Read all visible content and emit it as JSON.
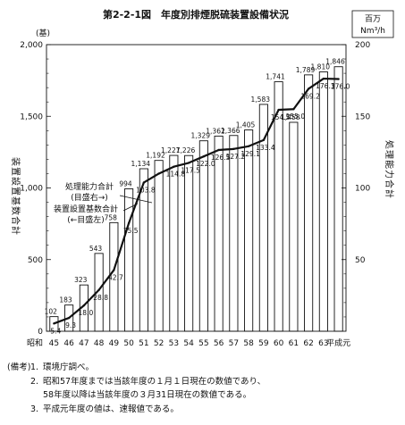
{
  "chart_data": {
    "type": "bar",
    "title": "第2-2-1図　年度別排煙脱硫装置設備状況",
    "left_axis": {
      "unit": "(基)",
      "label": "装置設置基数合計",
      "range": [
        0,
        2000
      ],
      "ticks": [
        "0",
        "500",
        "1,000",
        "1,500",
        "2,000"
      ]
    },
    "right_axis": {
      "unit_line1": "百万",
      "unit_line2": "Nm³/h",
      "label": "処理能力合計",
      "range": [
        0,
        200
      ],
      "ticks": [
        "50",
        "100",
        "150",
        "200"
      ]
    },
    "categories": [
      "45",
      "46",
      "47",
      "48",
      "49",
      "50",
      "51",
      "52",
      "53",
      "54",
      "55",
      "56",
      "57",
      "58",
      "59",
      "60",
      "61",
      "62",
      "63",
      "平成元"
    ],
    "x_prefix": "昭和",
    "series": [
      {
        "name": "装置設置基数合計",
        "axis_note": "(←目盛左)",
        "render": "bar",
        "values": [
          102,
          183,
          323,
          543,
          758,
          994,
          1134,
          1192,
          1227,
          1226,
          1329,
          1362,
          1366,
          1405,
          1583,
          1741,
          1458,
          1789,
          1810,
          1846
        ],
        "labels": [
          "102",
          "183",
          "323",
          "543",
          "758",
          "994",
          "1,134",
          "1,192",
          "1,227",
          "1,226",
          "1,329",
          "1,362",
          "1,366",
          "1,405",
          "1,583",
          "1,741",
          "1,458",
          "1,789",
          "1,810",
          "1,846"
        ]
      },
      {
        "name": "処理能力合計",
        "axis_note": "(目盛右→)",
        "render": "line",
        "values": [
          5.4,
          9.3,
          18.0,
          28.8,
          42.7,
          75.5,
          103.8,
          110.0,
          114.8,
          117.5,
          122.0,
          126.5,
          127.2,
          129.1,
          133.4,
          154.5,
          155.0,
          169.2,
          176.3,
          176.0
        ],
        "labels": [
          "5.4",
          "9.3",
          "18.0",
          "28.8",
          "42.7",
          "75.5",
          "103.8",
          "",
          "114.8",
          "117.5",
          "122.0",
          "126.5",
          "127.2",
          "129.1",
          "133.4",
          "154.5",
          "155.0",
          "169.2",
          "176.3",
          "176.0"
        ]
      }
    ]
  },
  "notes": {
    "label": "(備考)",
    "items": [
      {
        "num": "1.",
        "lines": [
          "環境庁調べ。"
        ]
      },
      {
        "num": "2.",
        "lines": [
          "昭和57年度までは当該年度の１月１日現在の数値であり、",
          "58年度以降は当該年度の３月31日現在の数値である。"
        ]
      },
      {
        "num": "3.",
        "lines": [
          "平成元年度の値は、速報値である。"
        ]
      }
    ]
  }
}
